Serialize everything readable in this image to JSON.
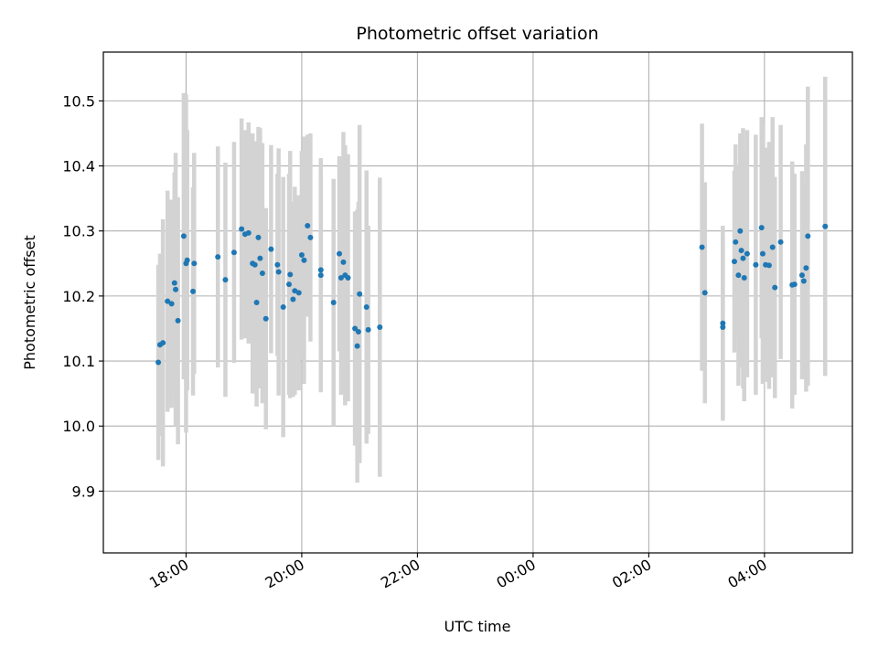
{
  "chart_data": {
    "type": "scatter",
    "title": "Photometric offset variation",
    "xlabel": "UTC time",
    "ylabel": "Photometric offset",
    "x_unit": "hours (UTC), continuing past midnight",
    "xlim": [
      16.57,
      29.52
    ],
    "ylim": [
      9.805,
      10.575
    ],
    "grid": true,
    "x_ticks": [
      {
        "value": 18,
        "label": "18:00"
      },
      {
        "value": 20,
        "label": "20:00"
      },
      {
        "value": 22,
        "label": "22:00"
      },
      {
        "value": 24,
        "label": "00:00"
      },
      {
        "value": 26,
        "label": "02:00"
      },
      {
        "value": 28,
        "label": "04:00"
      }
    ],
    "y_ticks": [
      {
        "value": 9.9,
        "label": "9.9"
      },
      {
        "value": 10.0,
        "label": "10.0"
      },
      {
        "value": 10.1,
        "label": "10.1"
      },
      {
        "value": 10.2,
        "label": "10.2"
      },
      {
        "value": 10.3,
        "label": "10.3"
      },
      {
        "value": 10.4,
        "label": "10.4"
      },
      {
        "value": 10.5,
        "label": "10.5"
      }
    ],
    "colors": {
      "point": "#1f77b4",
      "errorbar": "#d3d3d3",
      "grid": "#b0b0b0"
    },
    "series": [
      {
        "points": [
          [
            17.52,
            10.098,
            0.15
          ],
          [
            17.55,
            10.125,
            0.14
          ],
          [
            17.6,
            10.128,
            0.19
          ],
          [
            17.68,
            10.192,
            0.17
          ],
          [
            17.75,
            10.188,
            0.16
          ],
          [
            17.8,
            10.22,
            0.17
          ],
          [
            17.82,
            10.21,
            0.21
          ],
          [
            17.86,
            10.162,
            0.19
          ],
          [
            17.96,
            10.292,
            0.22
          ],
          [
            18.0,
            10.25,
            0.26
          ],
          [
            18.02,
            10.255,
            0.2
          ],
          [
            18.12,
            10.207,
            0.16
          ],
          [
            18.14,
            10.25,
            0.17
          ],
          [
            18.55,
            10.26,
            0.17
          ],
          [
            18.68,
            10.225,
            0.18
          ],
          [
            18.83,
            10.267,
            0.17
          ],
          [
            18.96,
            10.303,
            0.17
          ],
          [
            19.02,
            10.295,
            0.16
          ],
          [
            19.08,
            10.297,
            0.17
          ],
          [
            19.15,
            10.25,
            0.2
          ],
          [
            19.19,
            10.248,
            0.19
          ],
          [
            19.22,
            10.19,
            0.16
          ],
          [
            19.25,
            10.29,
            0.17
          ],
          [
            19.28,
            10.258,
            0.2
          ],
          [
            19.32,
            10.235,
            0.2
          ],
          [
            19.38,
            10.165,
            0.17
          ],
          [
            19.47,
            10.272,
            0.16
          ],
          [
            19.58,
            10.248,
            0.14
          ],
          [
            19.6,
            10.237,
            0.19
          ],
          [
            19.68,
            10.183,
            0.2
          ],
          [
            19.78,
            10.218,
            0.17
          ],
          [
            19.8,
            10.233,
            0.19
          ],
          [
            19.85,
            10.195,
            0.15
          ],
          [
            19.88,
            10.208,
            0.16
          ],
          [
            19.95,
            10.205,
            0.15
          ],
          [
            20.0,
            10.263,
            0.16
          ],
          [
            20.04,
            10.255,
            0.19
          ],
          [
            20.1,
            10.308,
            0.14
          ],
          [
            20.15,
            10.29,
            0.16
          ],
          [
            20.33,
            10.24,
            0.14
          ],
          [
            20.33,
            10.232,
            0.18
          ],
          [
            20.55,
            10.19,
            0.19
          ],
          [
            20.65,
            10.265,
            0.15
          ],
          [
            20.68,
            10.228,
            0.18
          ],
          [
            20.72,
            10.252,
            0.2
          ],
          [
            20.75,
            10.232,
            0.2
          ],
          [
            20.8,
            10.228,
            0.19
          ],
          [
            20.92,
            10.15,
            0.18
          ],
          [
            20.96,
            10.123,
            0.21
          ],
          [
            20.98,
            10.145,
            0.2
          ],
          [
            21.0,
            10.203,
            0.26
          ],
          [
            21.12,
            10.183,
            0.21
          ],
          [
            21.15,
            10.148,
            0.16
          ],
          [
            21.35,
            10.152,
            0.23
          ],
          [
            26.92,
            10.275,
            0.19
          ],
          [
            26.97,
            10.205,
            0.17
          ],
          [
            27.28,
            10.158,
            0.15
          ],
          [
            27.28,
            10.152,
            0.14
          ],
          [
            27.48,
            10.253,
            0.14
          ],
          [
            27.5,
            10.283,
            0.15
          ],
          [
            27.55,
            10.232,
            0.17
          ],
          [
            27.58,
            10.3,
            0.15
          ],
          [
            27.6,
            10.27,
            0.18
          ],
          [
            27.63,
            10.258,
            0.2
          ],
          [
            27.65,
            10.228,
            0.19
          ],
          [
            27.7,
            10.265,
            0.19
          ],
          [
            27.85,
            10.248,
            0.2
          ],
          [
            27.95,
            10.305,
            0.17
          ],
          [
            27.97,
            10.265,
            0.2
          ],
          [
            28.02,
            10.248,
            0.18
          ],
          [
            28.08,
            10.247,
            0.19
          ],
          [
            28.14,
            10.275,
            0.2
          ],
          [
            28.18,
            10.213,
            0.17
          ],
          [
            28.28,
            10.283,
            0.18
          ],
          [
            28.48,
            10.217,
            0.19
          ],
          [
            28.52,
            10.218,
            0.17
          ],
          [
            28.65,
            10.232,
            0.16
          ],
          [
            28.68,
            10.223,
            0.15
          ],
          [
            28.72,
            10.243,
            0.19
          ],
          [
            28.75,
            10.292,
            0.23
          ],
          [
            29.05,
            10.307,
            0.23
          ]
        ]
      }
    ]
  }
}
